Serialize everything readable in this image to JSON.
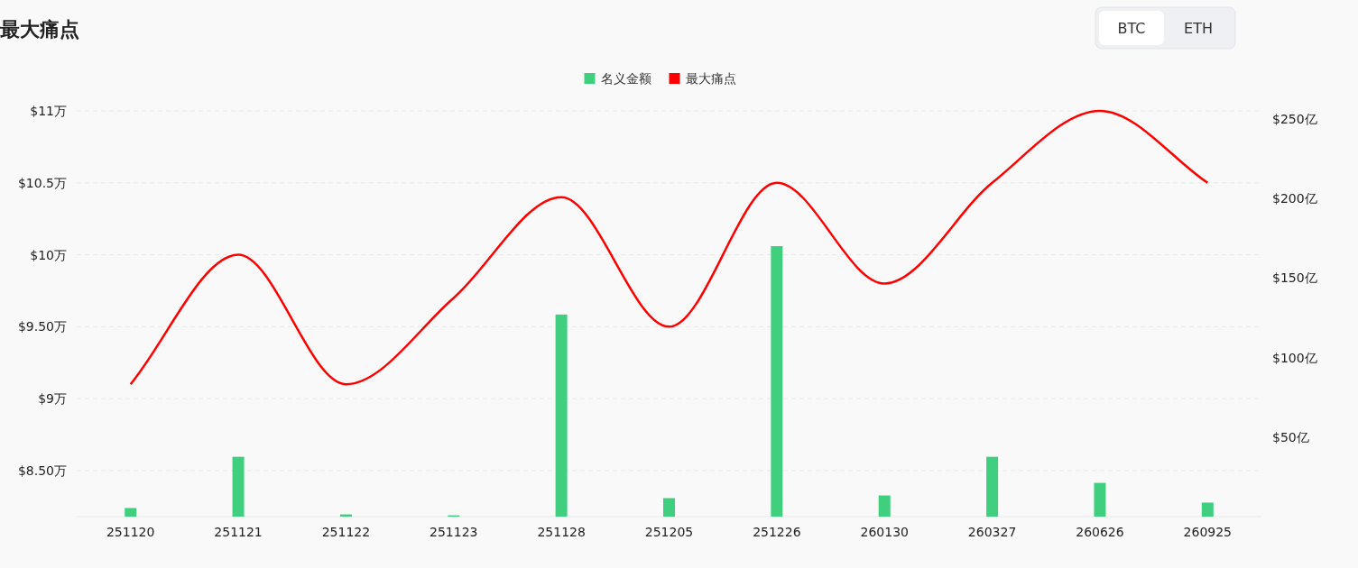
{
  "chart_data": {
    "type": "bar",
    "title": "最大痛点",
    "annotations": [
      "BTC",
      "ETH"
    ],
    "categories": [
      "251120",
      "251121",
      "251122",
      "251123",
      "251128",
      "251205",
      "251226",
      "260130",
      "260327",
      "260626",
      "260925"
    ],
    "series": [
      {
        "name": "名义金额",
        "axis": "y2",
        "color": "#40cf7f",
        "values": [
          5.4,
          37.6,
          1.4,
          0.8,
          127,
          11.6,
          170,
          13.3,
          37.6,
          21.2,
          8.8
        ]
      },
      {
        "name": "最大痛点",
        "type": "line",
        "color": "#ff0000",
        "values": [
          9.1,
          10.0,
          9.1,
          9.7,
          10.4,
          9.5,
          10.5,
          9.8,
          10.5,
          11.0,
          10.5
        ]
      }
    ],
    "ylim": [
      8.18,
      11
    ],
    "yticks": [
      {
        "value": 8.5,
        "label": "$8.50万"
      },
      {
        "value": 9,
        "label": "$9万"
      },
      {
        "value": 9.5,
        "label": "$9.50万"
      },
      {
        "value": 10,
        "label": "$10万"
      },
      {
        "value": 10.5,
        "label": "$10.5万"
      },
      {
        "value": 11,
        "label": "$11万"
      }
    ],
    "y2lim": [
      0,
      255
    ],
    "y2ticks": [
      {
        "value": 50,
        "label": "$50亿"
      },
      {
        "value": 100,
        "label": "$100亿"
      },
      {
        "value": 150,
        "label": "$150亿"
      },
      {
        "value": 200,
        "label": "$200亿"
      },
      {
        "value": 250,
        "label": "$250亿"
      }
    ],
    "grid": "y",
    "legend": "top",
    "marker": "none",
    "line_style": "solid"
  }
}
